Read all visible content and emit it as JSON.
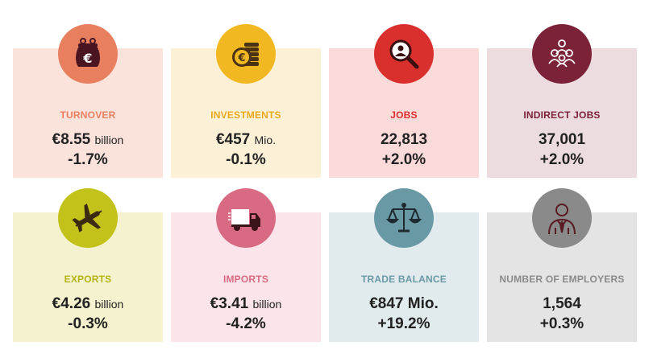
{
  "cards": [
    {
      "label": "TURNOVER",
      "value": "€8.55",
      "unit": "billion",
      "change": "-1.7%",
      "icon": "euro-purse-icon",
      "bg": "#fbe3dc",
      "accent": "#e8805f"
    },
    {
      "label": "INVESTMENTS",
      "value": "€457",
      "unit": "Mio.",
      "change": "-0.1%",
      "icon": "coins-icon",
      "bg": "#fcf1d6",
      "accent": "#f2b822"
    },
    {
      "label": "JOBS",
      "value": "22,813",
      "unit": "",
      "change": "+2.0%",
      "icon": "job-search-icon",
      "bg": "#fbdada",
      "accent": "#d9302e"
    },
    {
      "label": "INDIRECT JOBS",
      "value": "37,001",
      "unit": "",
      "change": "+2.0%",
      "icon": "people-network-icon",
      "bg": "#ecdcdf",
      "accent": "#7b2239"
    },
    {
      "label": "EXPORTS",
      "value": "€4.26",
      "unit": "billion",
      "change": "-0.3%",
      "icon": "airplane-icon",
      "bg": "#f5f3cf",
      "accent": "#c3c21a"
    },
    {
      "label": "IMPORTS",
      "value": "€3.41",
      "unit": "billion",
      "change": "-4.2%",
      "icon": "truck-icon",
      "bg": "#fbe5ea",
      "accent": "#d96a83"
    },
    {
      "label": "TRADE BALANCE",
      "value": "€847 Mio.",
      "unit": "",
      "change": "+19.2%",
      "icon": "scales-icon",
      "bg": "#e1eaed",
      "accent": "#6a99a6"
    },
    {
      "label": "NUMBER OF EMPLOYERS",
      "value": "1,564",
      "unit": "",
      "change": "+0.3%",
      "icon": "businessman-icon",
      "bg": "#e4e4e4",
      "accent": "#8a8a8a"
    }
  ]
}
